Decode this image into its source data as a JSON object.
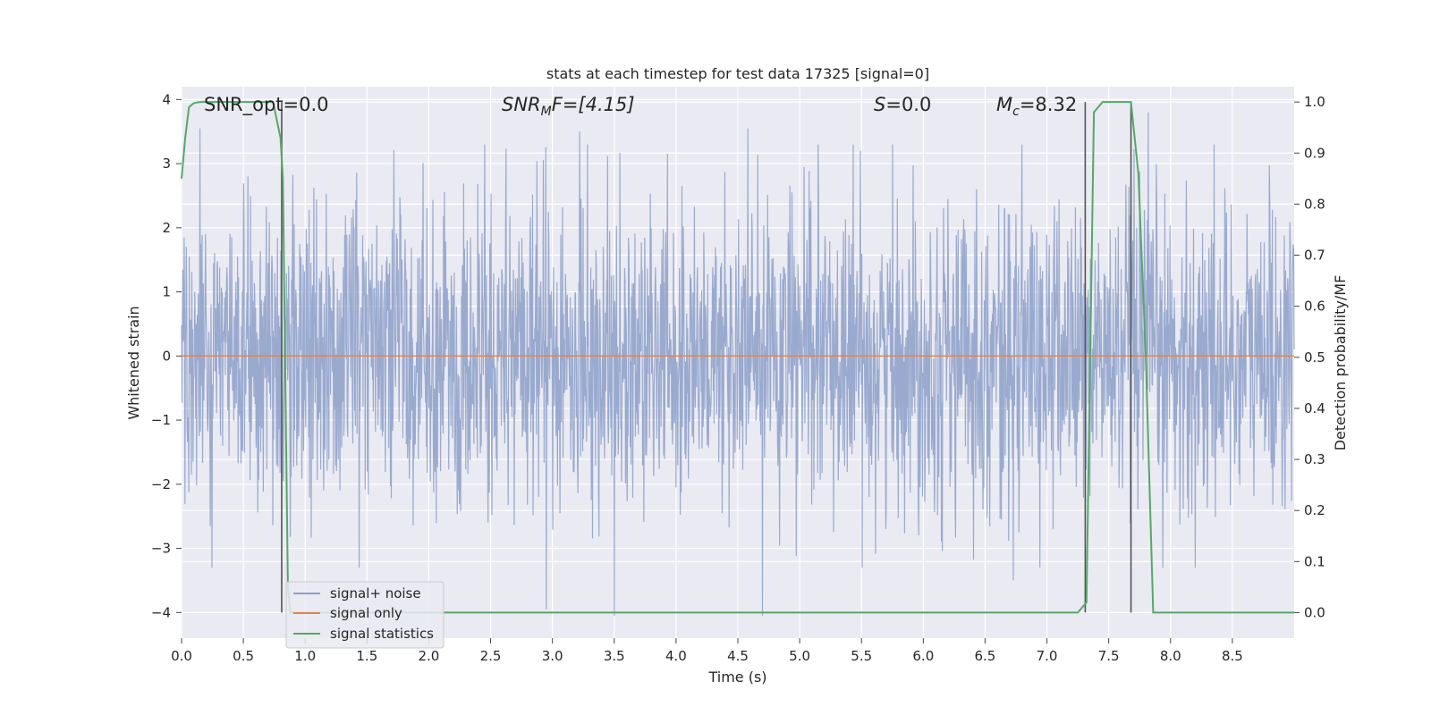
{
  "chart_data": {
    "type": "line",
    "title": "stats at each timestep for test data 17325 [signal=0]",
    "xlabel": "Time (s)",
    "ylabel": "Whitened strain",
    "ylabel_right": "Detection probability/MF",
    "xlim": [
      0.0,
      9.0
    ],
    "ylim": [
      -4.4,
      4.2
    ],
    "ylim_right": [
      -0.05,
      1.03
    ],
    "x_ticks": [
      "0.0",
      "0.5",
      "1.0",
      "1.5",
      "2.0",
      "2.5",
      "3.0",
      "3.5",
      "4.0",
      "4.5",
      "5.0",
      "5.5",
      "6.0",
      "6.5",
      "7.0",
      "7.5",
      "8.0",
      "8.5"
    ],
    "y_ticks": [
      "−4",
      "−3",
      "−2",
      "−1",
      "0",
      "1",
      "2",
      "3",
      "4"
    ],
    "y_ticks_right": [
      "0.0",
      "0.1",
      "0.2",
      "0.3",
      "0.4",
      "0.5",
      "0.6",
      "0.7",
      "0.8",
      "0.9",
      "1.0"
    ],
    "grid": true,
    "legend_position": "lower-left",
    "annotations": {
      "snr_opt": "SNR_opt=0.0",
      "snr_mf_base": "SNR",
      "snr_mf_sub": "M",
      "snr_mf_tail": "F=[4.15]",
      "s_italic": "S",
      "s_value": "=0.0",
      "mc_base": "M",
      "mc_sub": "c",
      "mc_value": "=8.32"
    },
    "series": [
      {
        "name": "signal+ noise",
        "color": "#8c9fc9",
        "kind": "noise",
        "duration": 9.0,
        "envelope_mean_abs": 1.25,
        "notable_peaks": [
          {
            "x": 0.15,
            "y": 3.55
          },
          {
            "x": 2.95,
            "y": -3.95
          },
          {
            "x": 3.22,
            "y": 3.5
          },
          {
            "x": 3.5,
            "y": -4.05
          },
          {
            "x": 4.58,
            "y": 3.55
          },
          {
            "x": 4.7,
            "y": -4.05
          },
          {
            "x": 6.73,
            "y": -3.5
          },
          {
            "x": 7.82,
            "y": 3.8
          },
          {
            "x": 8.2,
            "y": -3.3
          }
        ]
      },
      {
        "name": "signal only",
        "color": "#dd8452",
        "kind": "flat",
        "y": 0.0
      },
      {
        "name": "signal statistics",
        "color": "#55a868",
        "kind": "line",
        "axis": "right",
        "x": [
          0.0,
          0.03,
          0.06,
          0.1,
          0.15,
          0.3,
          0.5,
          0.7,
          0.74,
          0.8,
          0.82,
          0.86,
          0.88,
          1.0,
          2.0,
          3.0,
          4.0,
          5.0,
          6.0,
          7.0,
          7.25,
          7.32,
          7.38,
          7.45,
          7.6,
          7.68,
          7.74,
          7.8,
          7.86,
          8.0,
          8.5,
          9.0
        ],
        "y": [
          0.85,
          0.93,
          0.99,
          0.998,
          1.0,
          1.0,
          1.0,
          1.0,
          1.0,
          0.93,
          0.85,
          0.05,
          0.0,
          0.0,
          0.0,
          0.0,
          0.0,
          0.0,
          0.0,
          0.0,
          0.0,
          0.02,
          0.98,
          1.0,
          1.0,
          1.0,
          0.86,
          0.5,
          0.0,
          0.0,
          0.0,
          0.0
        ]
      }
    ],
    "vertical_markers": [
      0.81,
      7.31,
      7.68
    ]
  }
}
